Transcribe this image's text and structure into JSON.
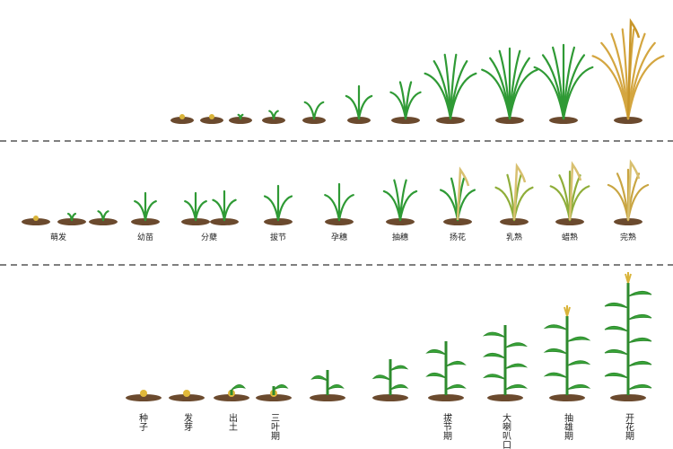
{
  "rice_stages": [
    "萌发",
    "幼苗",
    "分蘖",
    "拔节",
    "孕穗",
    "抽穗",
    "扬花",
    "乳熟",
    "蜡熟",
    "完熟"
  ],
  "corn_stages": [
    "种子",
    "发芽",
    "出土",
    "三叶期",
    "拔节期",
    "大喇叭口",
    "抽雄期",
    "开花期"
  ]
}
